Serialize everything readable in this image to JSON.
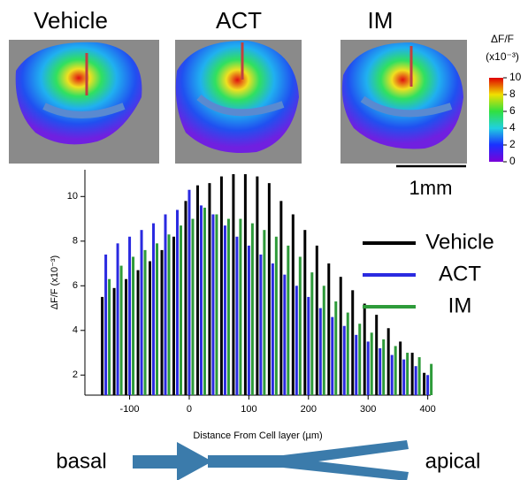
{
  "panels": {
    "titles": [
      "Vehicle",
      "ACT",
      "IM"
    ]
  },
  "colorbar": {
    "title": "ΔF/F",
    "unit": "(x10⁻³)",
    "lim": [
      0,
      10
    ],
    "ticks": [
      0,
      2,
      4,
      6,
      8,
      10
    ]
  },
  "scale_bar": "1mm",
  "arrow": {
    "left": "basal",
    "right": "apical"
  },
  "chart_data": {
    "type": "bar",
    "x_label": "Distance From Cell layer (µm)",
    "y_label": "ΔF/F (x10⁻³)",
    "x": [
      -140,
      -120,
      -100,
      -80,
      -60,
      -40,
      -20,
      0,
      20,
      40,
      60,
      80,
      100,
      120,
      140,
      160,
      180,
      200,
      220,
      240,
      260,
      280,
      300,
      320,
      340,
      360,
      380,
      400
    ],
    "series": [
      {
        "name": "Vehicle",
        "color": "#000000",
        "values": [
          5.5,
          5.9,
          6.3,
          6.7,
          7.1,
          7.6,
          8.2,
          9.8,
          10.5,
          10.6,
          10.9,
          11.0,
          11.0,
          10.9,
          10.6,
          9.8,
          9.2,
          8.5,
          7.8,
          7.0,
          6.4,
          5.8,
          5.2,
          4.7,
          4.1,
          3.5,
          3.0,
          2.1
        ]
      },
      {
        "name": "ACT",
        "color": "#2a2ae0",
        "values": [
          7.4,
          7.9,
          8.2,
          8.5,
          8.8,
          9.2,
          9.4,
          10.3,
          9.6,
          9.2,
          8.7,
          8.2,
          7.8,
          7.4,
          7.0,
          6.5,
          6.0,
          5.5,
          5.0,
          4.6,
          4.2,
          3.8,
          3.5,
          3.2,
          2.9,
          2.7,
          2.4,
          2.0
        ]
      },
      {
        "name": "IM",
        "color": "#2e9b3a",
        "values": [
          6.3,
          6.9,
          7.3,
          7.6,
          7.9,
          8.3,
          8.7,
          9.0,
          9.5,
          9.2,
          9.0,
          9.0,
          8.8,
          8.5,
          8.2,
          7.8,
          7.3,
          6.6,
          6.0,
          5.3,
          4.8,
          4.3,
          3.9,
          3.6,
          3.3,
          3.0,
          2.8,
          2.5
        ]
      }
    ],
    "xlim": [
      -175,
      405
    ],
    "ylim": [
      1.1,
      11.2
    ],
    "xticks": [
      -100,
      0,
      100,
      200,
      300,
      400
    ],
    "yticks": [
      2,
      4,
      6,
      8,
      10
    ]
  }
}
